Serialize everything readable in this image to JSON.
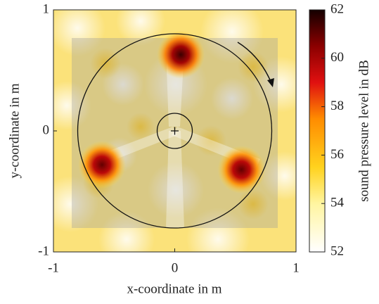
{
  "chart_data": {
    "type": "heatmap",
    "xlabel": "x-coordinate in m",
    "ylabel": "y-coordinate in m",
    "xlim": [
      -1,
      1
    ],
    "ylim": [
      -1,
      1
    ],
    "xticks": [
      -1,
      0,
      1
    ],
    "yticks": [
      -1,
      0,
      1
    ],
    "colorbar": {
      "label": "sound pressure level in dB",
      "lim": [
        52,
        62
      ],
      "ticks": [
        52,
        54,
        56,
        58,
        60,
        62
      ]
    },
    "sources": {
      "x": [
        0.05,
        -0.6,
        0.55
      ],
      "y": [
        0.63,
        -0.28,
        -0.32
      ],
      "values": [
        61.5,
        61,
        61
      ]
    }
  }
}
